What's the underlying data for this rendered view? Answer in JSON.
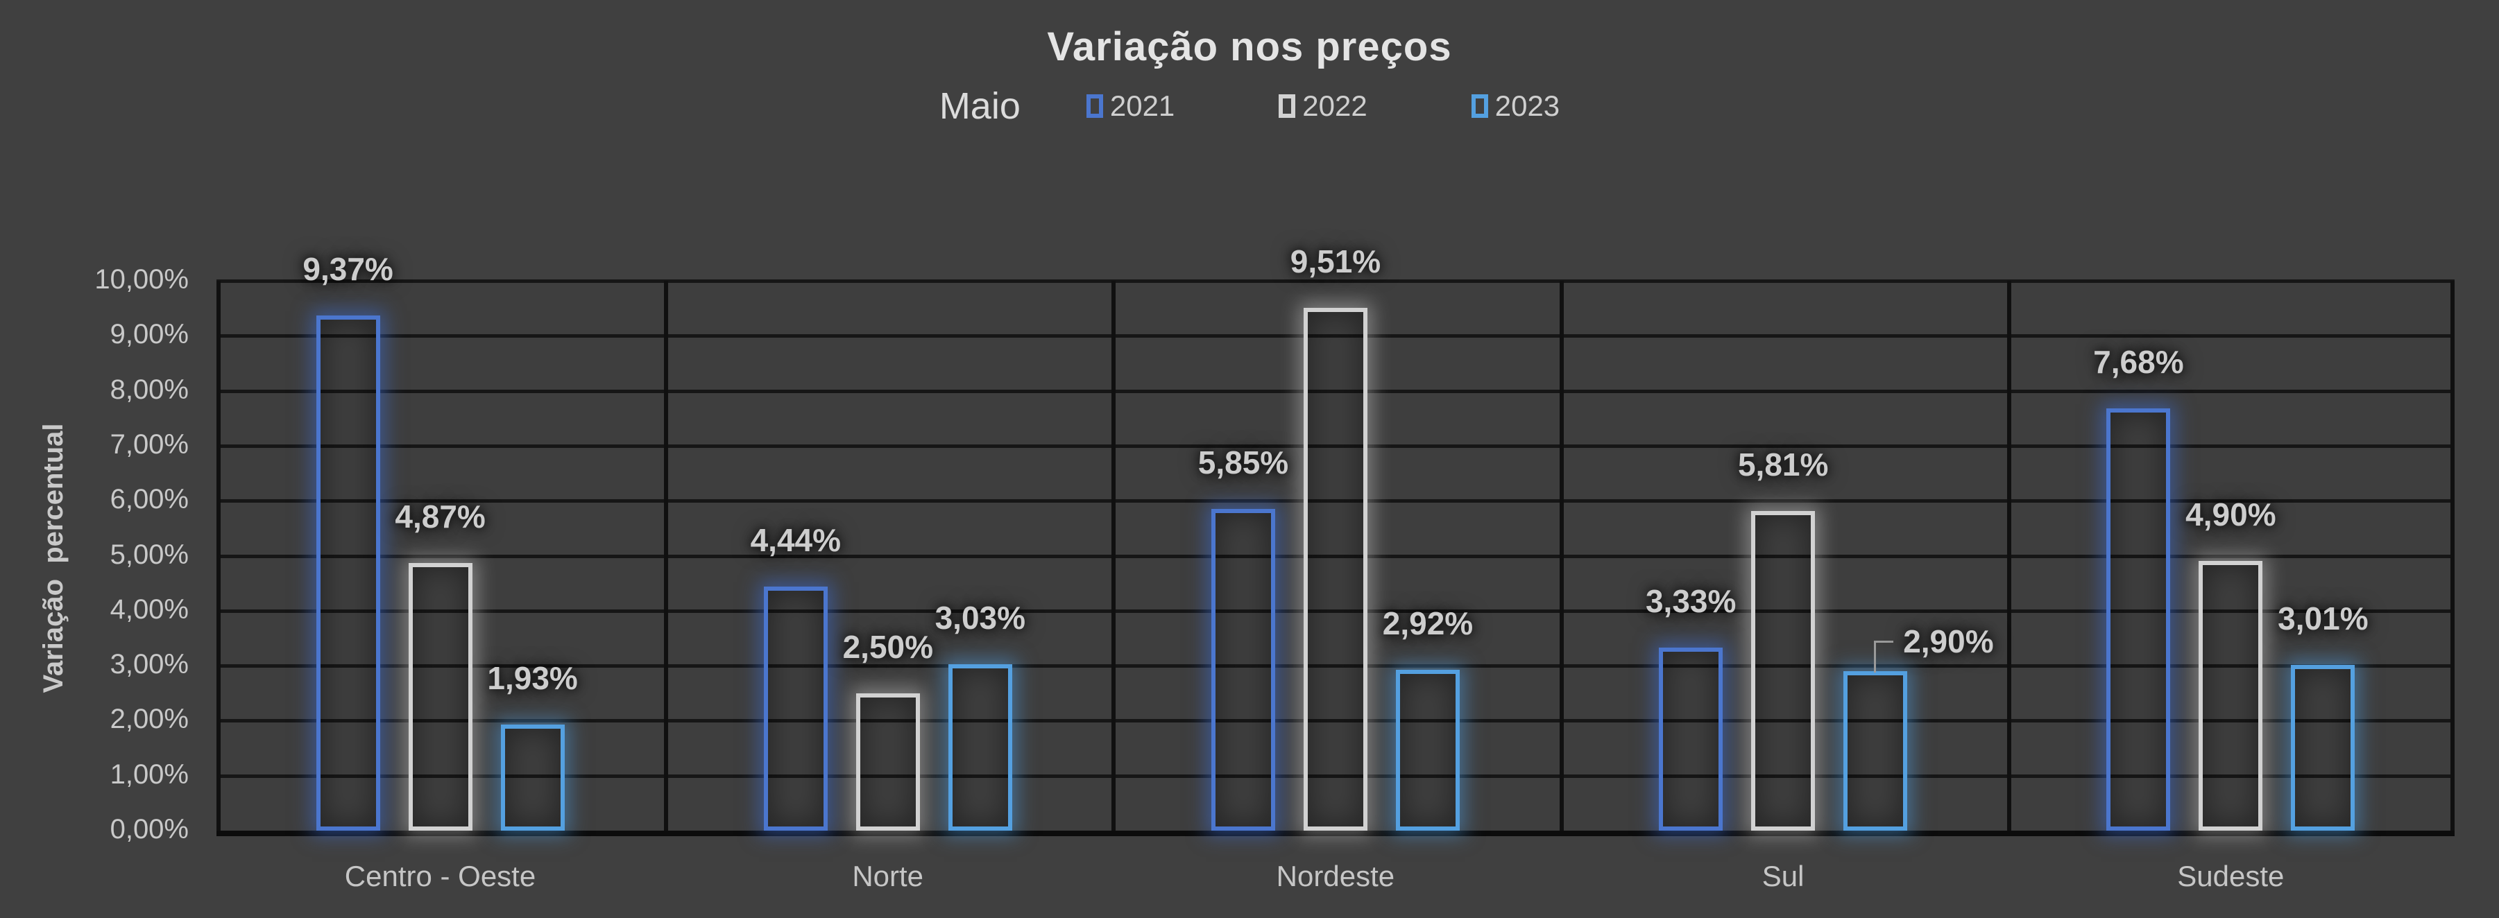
{
  "header": {
    "title": "Variação nos preços",
    "subtitle": "Maio"
  },
  "legend": {
    "items": [
      {
        "label": "2021",
        "color": "#4B76CE",
        "glow": "rgba(62,110,210,0.55)"
      },
      {
        "label": "2022",
        "color": "#D2D2D2",
        "glow": "rgba(230,230,230,0.40)"
      },
      {
        "label": "2023",
        "color": "#54A0E0",
        "glow": "rgba(80,160,230,0.50)"
      }
    ]
  },
  "y_axis": {
    "title": "Variação  percentual",
    "ticks": [
      "10,00%",
      "9,00%",
      "8,00%",
      "7,00%",
      "6,00%",
      "5,00%",
      "4,00%",
      "3,00%",
      "2,00%",
      "1,00%",
      "0,00%"
    ]
  },
  "chart_data": {
    "type": "bar",
    "title": "Variação nos preços",
    "subtitle": "Maio",
    "categories": [
      "Centro - Oeste",
      "Norte",
      "Nordeste",
      "Sul",
      "Sudeste"
    ],
    "series": [
      {
        "name": "2021",
        "color": "#4B76CE",
        "values": [
          9.37,
          4.44,
          5.85,
          3.33,
          7.68
        ],
        "labels": [
          "9,37%",
          "4,44%",
          "5,85%",
          "3,33%",
          "7,68%"
        ]
      },
      {
        "name": "2022",
        "color": "#D2D2D2",
        "values": [
          4.87,
          2.5,
          9.51,
          5.81,
          4.9
        ],
        "labels": [
          "4,87%",
          "2,50%",
          "9,51%",
          "5,81%",
          "4,90%"
        ]
      },
      {
        "name": "2023",
        "color": "#54A0E0",
        "values": [
          1.93,
          3.03,
          2.92,
          2.9,
          3.01
        ],
        "labels": [
          "1,93%",
          "3,03%",
          "2,92%",
          "2,90%",
          "3,01%"
        ]
      }
    ],
    "xlabel": "",
    "ylabel": "Variação  percentual",
    "ylim": [
      0,
      10
    ],
    "y_tick_step": 1,
    "y_tick_format": "0,00%",
    "grid": true,
    "bar_style": "outline-only-with-glow",
    "legend_position": "top",
    "data_labels": "outside-end",
    "callout": {
      "category": "Sul",
      "series": "2023",
      "note": "label moved right with leader line"
    }
  },
  "colors": {
    "background": "#404040",
    "plot_background": "#3E3E3E",
    "gridline": "#161616",
    "axis_line": "#0C0C0C",
    "text_primary": "#E4E4E4",
    "text_secondary": "#C9C9C9",
    "leader_line": "#9A9A9A"
  }
}
